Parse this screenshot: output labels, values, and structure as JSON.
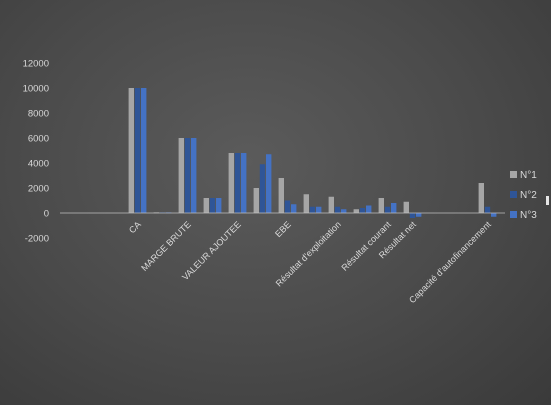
{
  "chart_data": {
    "type": "bar",
    "title": "",
    "xlabel": "",
    "ylabel": "",
    "ylim": [
      -2000,
      12000
    ],
    "yticks": [
      -2000,
      0,
      2000,
      4000,
      6000,
      8000,
      10000,
      12000
    ],
    "grid": false,
    "legend_position": "right",
    "categories": [
      "",
      "CA",
      "",
      "MARGE BRUTE",
      "",
      "VALEUR AJOUTEE",
      "",
      "EBE",
      "",
      "Résultat d'exploitation",
      "",
      "Résultat courant",
      "Résultat net",
      "",
      "",
      "Capacité d'autofinancement"
    ],
    "series": [
      {
        "name": "N°1",
        "color": "#a6a6a6",
        "values": [
          0,
          10000,
          50,
          6000,
          1200,
          4800,
          2000,
          2800,
          1500,
          1300,
          300,
          1200,
          900,
          0,
          0,
          2400
        ]
      },
      {
        "name": "N°2",
        "color": "#2f5597",
        "values": [
          0,
          10000,
          50,
          6000,
          1200,
          4800,
          3900,
          1000,
          500,
          500,
          400,
          500,
          -400,
          0,
          0,
          500
        ]
      },
      {
        "name": "N°3",
        "color": "#4472c4",
        "values": [
          0,
          10000,
          50,
          6000,
          1200,
          4800,
          4700,
          700,
          500,
          300,
          600,
          800,
          -300,
          0,
          0,
          -300
        ]
      }
    ]
  }
}
